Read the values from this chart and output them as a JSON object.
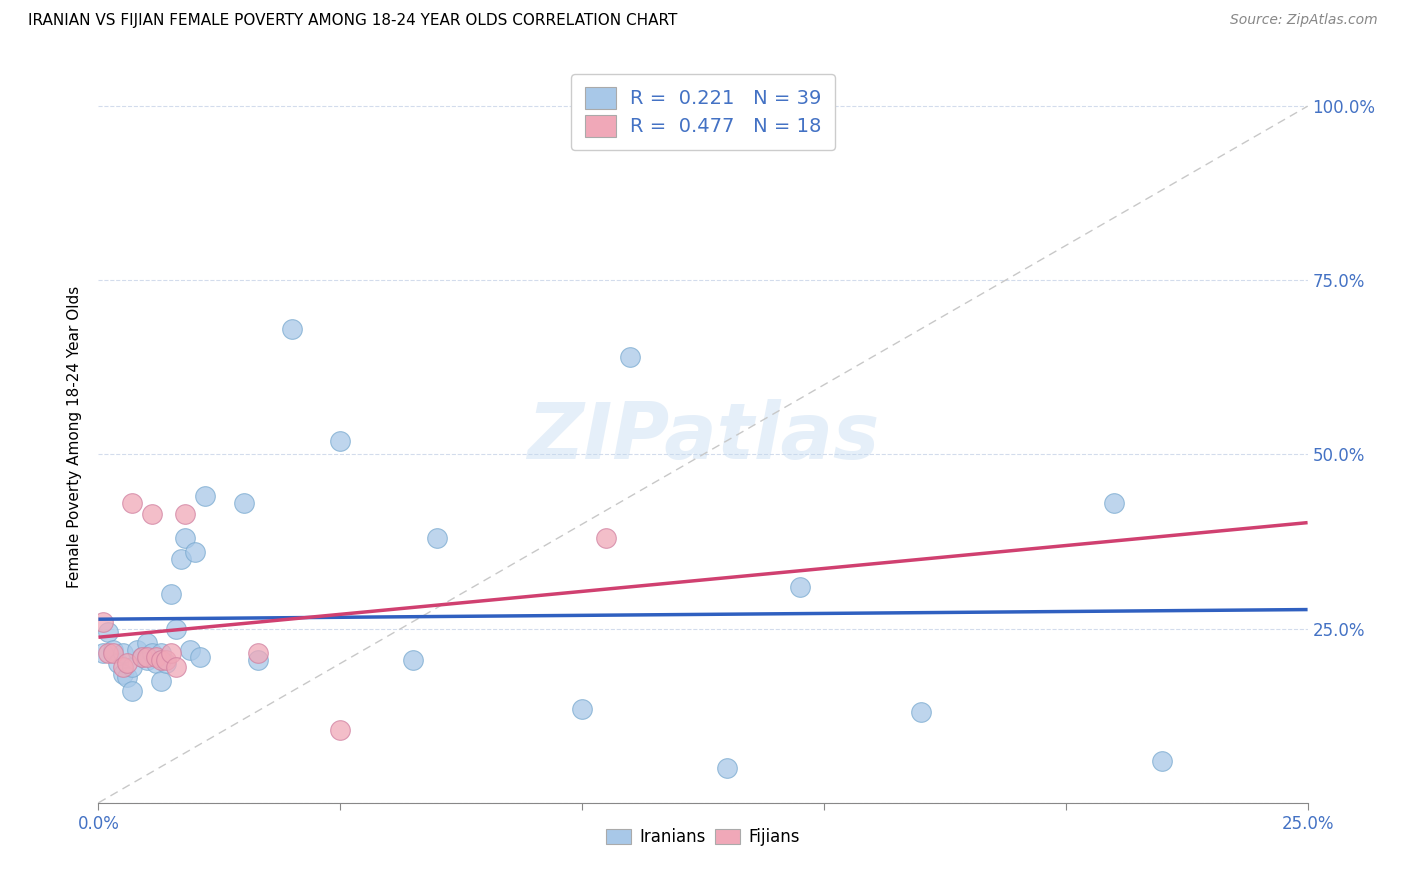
{
  "title": "IRANIAN VS FIJIAN FEMALE POVERTY AMONG 18-24 YEAR OLDS CORRELATION CHART",
  "source": "Source: ZipAtlas.com",
  "ylabel": "Female Poverty Among 18-24 Year Olds",
  "xlim": [
    0.0,
    0.25
  ],
  "ylim": [
    0.0,
    1.05
  ],
  "iranian_color": "#a8c8e8",
  "fijian_color": "#f0a8b8",
  "iranian_line_color": "#3060c0",
  "fijian_line_color": "#d04070",
  "watermark": "ZIPatlas",
  "legend_R_iranian": "0.221",
  "legend_N_iranian": "39",
  "legend_R_fijian": "0.477",
  "legend_N_fijian": "18",
  "iranians_label": "Iranians",
  "fijians_label": "Fijians",
  "iranian_x": [
    0.001,
    0.002,
    0.003,
    0.004,
    0.005,
    0.005,
    0.006,
    0.007,
    0.007,
    0.008,
    0.009,
    0.01,
    0.01,
    0.011,
    0.012,
    0.013,
    0.013,
    0.014,
    0.015,
    0.016,
    0.017,
    0.018,
    0.019,
    0.02,
    0.021,
    0.022,
    0.03,
    0.033,
    0.04,
    0.05,
    0.065,
    0.07,
    0.1,
    0.11,
    0.13,
    0.145,
    0.17,
    0.21,
    0.22
  ],
  "iranian_y": [
    0.215,
    0.245,
    0.22,
    0.2,
    0.215,
    0.185,
    0.18,
    0.195,
    0.16,
    0.22,
    0.21,
    0.205,
    0.23,
    0.215,
    0.2,
    0.215,
    0.175,
    0.2,
    0.3,
    0.25,
    0.35,
    0.38,
    0.22,
    0.36,
    0.21,
    0.44,
    0.43,
    0.205,
    0.68,
    0.52,
    0.205,
    0.38,
    0.135,
    0.64,
    0.05,
    0.31,
    0.13,
    0.43,
    0.06
  ],
  "fijian_x": [
    0.001,
    0.002,
    0.003,
    0.005,
    0.006,
    0.007,
    0.009,
    0.01,
    0.011,
    0.012,
    0.013,
    0.014,
    0.015,
    0.016,
    0.018,
    0.033,
    0.05,
    0.105
  ],
  "fijian_y": [
    0.26,
    0.215,
    0.215,
    0.195,
    0.2,
    0.43,
    0.21,
    0.21,
    0.415,
    0.21,
    0.205,
    0.205,
    0.215,
    0.195,
    0.415,
    0.215,
    0.105,
    0.38
  ]
}
